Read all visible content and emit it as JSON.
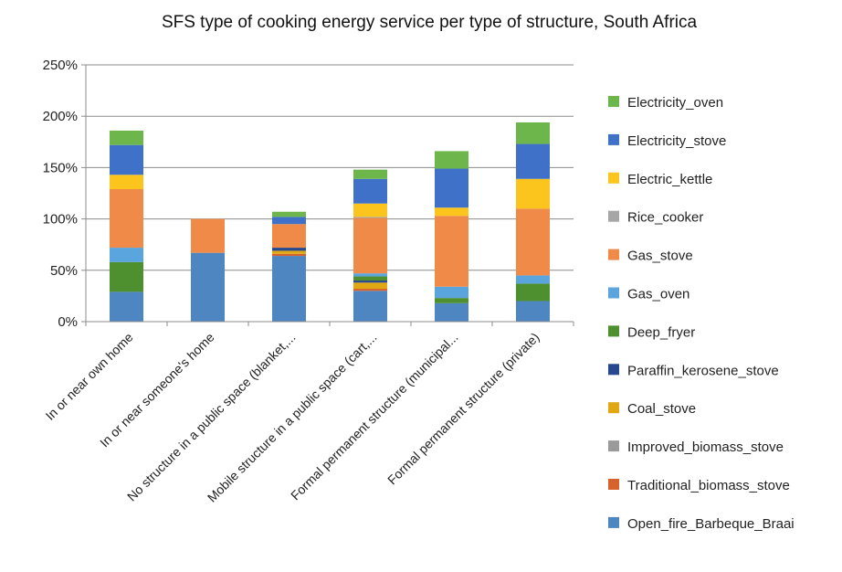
{
  "chart_data": {
    "type": "bar",
    "stacked": true,
    "title": "SFS type of cooking energy service per type of structure, South Africa",
    "xlabel": "",
    "ylabel": "",
    "ylim": [
      0,
      2.5
    ],
    "yticks": [
      "0%",
      "50%",
      "100%",
      "150%",
      "200%",
      "250%"
    ],
    "ytick_values": [
      0,
      0.5,
      1.0,
      1.5,
      2.0,
      2.5
    ],
    "grid": true,
    "legend_position": "right",
    "categories": [
      "In or near own home",
      "In or near someone's home",
      "No structure in a public space (blanket,...",
      "Mobile structure in a public space (cart,...",
      "Formal permanent structure (municipal...",
      "Formal permanent structure (private)"
    ],
    "series": [
      {
        "name": "Open_fire_Barbeque_Braai",
        "color": "#4e86c2",
        "values": [
          0.29,
          0.67,
          0.64,
          0.3,
          0.18,
          0.2
        ]
      },
      {
        "name": "Traditional_biomass_stove",
        "color": "#d8622c",
        "values": [
          0.0,
          0.0,
          0.02,
          0.02,
          0.0,
          0.0
        ]
      },
      {
        "name": "Improved_biomass_stove",
        "color": "#9a9a9a",
        "values": [
          0.0,
          0.0,
          0.0,
          0.0,
          0.0,
          0.0
        ]
      },
      {
        "name": "Coal_stove",
        "color": "#e0a812",
        "values": [
          0.0,
          0.0,
          0.03,
          0.06,
          0.0,
          0.0
        ]
      },
      {
        "name": "Paraffin_kerosene_stove",
        "color": "#27488f",
        "values": [
          0.0,
          0.0,
          0.03,
          0.02,
          0.0,
          0.0
        ]
      },
      {
        "name": "Deep_fryer",
        "color": "#4e8f30",
        "values": [
          0.29,
          0.0,
          0.0,
          0.04,
          0.05,
          0.17
        ]
      },
      {
        "name": "Gas_oven",
        "color": "#5aa5dd",
        "values": [
          0.14,
          0.0,
          0.0,
          0.03,
          0.11,
          0.08
        ]
      },
      {
        "name": "Gas_stove",
        "color": "#f08a48",
        "values": [
          0.57,
          0.33,
          0.23,
          0.54,
          0.69,
          0.65
        ]
      },
      {
        "name": "Rice_cooker",
        "color": "#a6a6a6",
        "values": [
          0.0,
          0.0,
          0.0,
          0.01,
          0.0,
          0.0
        ]
      },
      {
        "name": "Electric_kettle",
        "color": "#fbc51d",
        "values": [
          0.14,
          0.0,
          0.0,
          0.13,
          0.08,
          0.29
        ]
      },
      {
        "name": "Electricity_stove",
        "color": "#3f71c9",
        "values": [
          0.29,
          0.0,
          0.07,
          0.24,
          0.38,
          0.34
        ]
      },
      {
        "name": "Electricity_oven",
        "color": "#6db64b",
        "values": [
          0.14,
          0.0,
          0.05,
          0.09,
          0.17,
          0.21
        ]
      }
    ]
  }
}
